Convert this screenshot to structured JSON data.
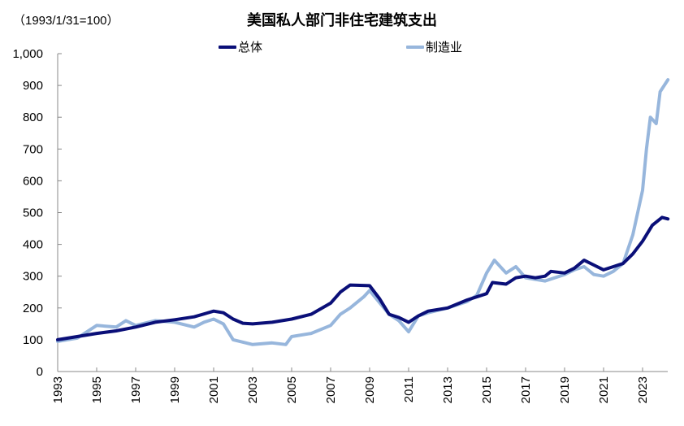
{
  "chart_data": {
    "type": "line",
    "title": "美国私人部门非住宅建筑支出",
    "subtitle": "（1993/1/31=100）",
    "xlabel": "",
    "ylabel": "",
    "ylim": [
      0,
      1000
    ],
    "xlim": [
      1993,
      2024.3
    ],
    "yticks": [
      "0",
      "100",
      "200",
      "300",
      "400",
      "500",
      "600",
      "700",
      "800",
      "900",
      "1,000"
    ],
    "ytick_values": [
      0,
      100,
      200,
      300,
      400,
      500,
      600,
      700,
      800,
      900,
      1000
    ],
    "xticks": [
      "1993",
      "1995",
      "1997",
      "1999",
      "2001",
      "2003",
      "2005",
      "2007",
      "2009",
      "2011",
      "2013",
      "2015",
      "2017",
      "2019",
      "2021",
      "2023"
    ],
    "xtick_values": [
      1993,
      1995,
      1997,
      1999,
      2001,
      2003,
      2005,
      2007,
      2009,
      2011,
      2013,
      2015,
      2017,
      2019,
      2021,
      2023
    ],
    "grid": false,
    "legend_position": "top-center",
    "series": [
      {
        "name": "总体",
        "color": "#0a0f78",
        "points": [
          [
            1993,
            100
          ],
          [
            1994,
            110
          ],
          [
            1995,
            120
          ],
          [
            1996,
            128
          ],
          [
            1997,
            140
          ],
          [
            1998,
            155
          ],
          [
            1999,
            163
          ],
          [
            2000,
            172
          ],
          [
            2001,
            190
          ],
          [
            2001.5,
            185
          ],
          [
            2002,
            165
          ],
          [
            2002.5,
            152
          ],
          [
            2003,
            150
          ],
          [
            2004,
            155
          ],
          [
            2005,
            165
          ],
          [
            2006,
            180
          ],
          [
            2007,
            215
          ],
          [
            2007.5,
            250
          ],
          [
            2008,
            272
          ],
          [
            2009,
            270
          ],
          [
            2009.5,
            230
          ],
          [
            2010,
            180
          ],
          [
            2010.5,
            170
          ],
          [
            2011,
            155
          ],
          [
            2011.5,
            175
          ],
          [
            2012,
            190
          ],
          [
            2013,
            200
          ],
          [
            2014,
            225
          ],
          [
            2015,
            245
          ],
          [
            2015.3,
            280
          ],
          [
            2016,
            275
          ],
          [
            2016.5,
            295
          ],
          [
            2017,
            300
          ],
          [
            2017.5,
            295
          ],
          [
            2018,
            300
          ],
          [
            2018.3,
            315
          ],
          [
            2019,
            310
          ],
          [
            2019.5,
            325
          ],
          [
            2020,
            350
          ],
          [
            2020.5,
            335
          ],
          [
            2021,
            320
          ],
          [
            2021.5,
            330
          ],
          [
            2022,
            340
          ],
          [
            2022.5,
            370
          ],
          [
            2023,
            410
          ],
          [
            2023.5,
            460
          ],
          [
            2024,
            485
          ],
          [
            2024.3,
            480
          ]
        ]
      },
      {
        "name": "制造业",
        "color": "#97b6dc",
        "points": [
          [
            1993,
            95
          ],
          [
            1994,
            105
          ],
          [
            1995,
            145
          ],
          [
            1996,
            140
          ],
          [
            1996.5,
            160
          ],
          [
            1997,
            145
          ],
          [
            1998,
            160
          ],
          [
            1999,
            155
          ],
          [
            2000,
            140
          ],
          [
            2000.5,
            155
          ],
          [
            2001,
            165
          ],
          [
            2001.5,
            150
          ],
          [
            2002,
            100
          ],
          [
            2003,
            85
          ],
          [
            2004,
            90
          ],
          [
            2004.7,
            85
          ],
          [
            2005,
            110
          ],
          [
            2006,
            120
          ],
          [
            2007,
            145
          ],
          [
            2007.5,
            180
          ],
          [
            2008,
            200
          ],
          [
            2008.7,
            235
          ],
          [
            2009,
            255
          ],
          [
            2010,
            180
          ],
          [
            2010.5,
            160
          ],
          [
            2011,
            125
          ],
          [
            2011.5,
            175
          ],
          [
            2012,
            185
          ],
          [
            2013,
            200
          ],
          [
            2014,
            220
          ],
          [
            2014.5,
            240
          ],
          [
            2015,
            310
          ],
          [
            2015.4,
            350
          ],
          [
            2016,
            310
          ],
          [
            2016.5,
            330
          ],
          [
            2017,
            295
          ],
          [
            2018,
            285
          ],
          [
            2019,
            305
          ],
          [
            2019.5,
            320
          ],
          [
            2020,
            330
          ],
          [
            2020.5,
            305
          ],
          [
            2021,
            300
          ],
          [
            2021.5,
            315
          ],
          [
            2022,
            340
          ],
          [
            2022.5,
            430
          ],
          [
            2023,
            570
          ],
          [
            2023.2,
            700
          ],
          [
            2023.4,
            800
          ],
          [
            2023.7,
            780
          ],
          [
            2023.9,
            880
          ],
          [
            2024.3,
            918
          ]
        ]
      }
    ]
  }
}
